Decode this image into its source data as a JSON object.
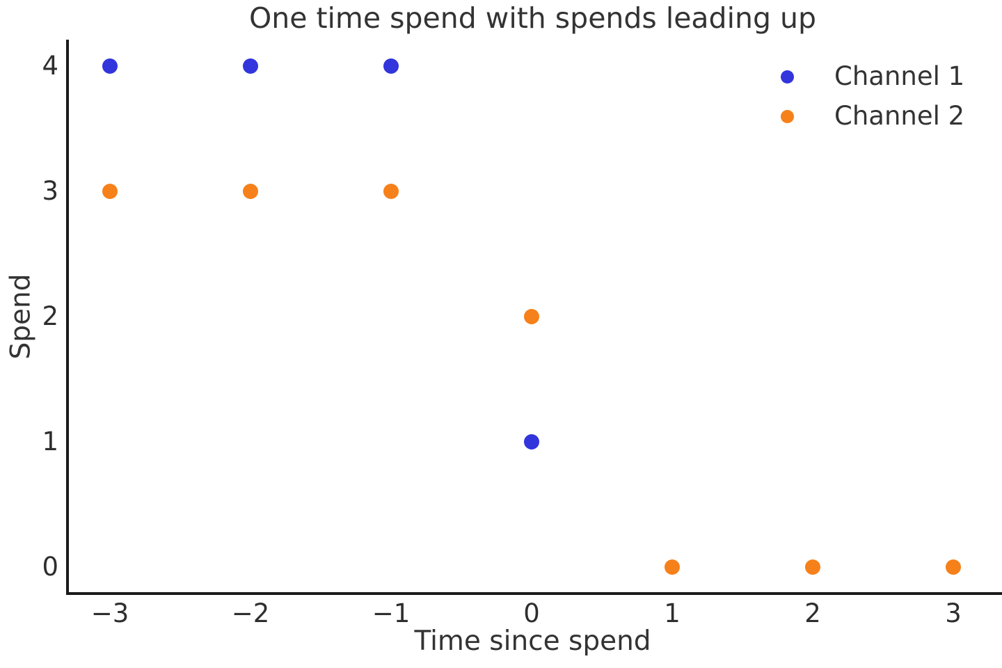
{
  "figure": {
    "title": "One time spend with spends leading up",
    "xlabel": "Time since spend",
    "ylabel": "Spend"
  },
  "legend": {
    "entries": [
      "Channel 1",
      "Channel 2"
    ],
    "position": "upper right",
    "frame": false
  },
  "colors": {
    "channel1": "#3235dc",
    "channel2": "#f6801a",
    "spine": "#1a1a1a",
    "text": "#333333"
  },
  "chart_data": {
    "type": "scatter",
    "title": "One time spend with spends leading up",
    "xlabel": "Time since spend",
    "ylabel": "Spend",
    "xlim": [
      -3.3,
      3.33
    ],
    "ylim": [
      -0.2,
      4.2
    ],
    "grid": false,
    "legend_position": "upper right",
    "x_ticks": {
      "values": [
        -3,
        -2,
        -1,
        0,
        1,
        2,
        3
      ],
      "labels": [
        "−3",
        "−2",
        "−1",
        "0",
        "1",
        "2",
        "3"
      ]
    },
    "y_ticks": {
      "values": [
        0,
        1,
        2,
        3,
        4
      ],
      "labels": [
        "0",
        "1",
        "2",
        "3",
        "4"
      ]
    },
    "series": [
      {
        "name": "Channel 1",
        "color": "#3235dc",
        "points": [
          {
            "x": -3,
            "y": 4
          },
          {
            "x": -2,
            "y": 4
          },
          {
            "x": -1,
            "y": 4
          },
          {
            "x": 0,
            "y": 1
          }
        ]
      },
      {
        "name": "Channel 2",
        "color": "#f6801a",
        "points": [
          {
            "x": -3,
            "y": 3
          },
          {
            "x": -2,
            "y": 3
          },
          {
            "x": -1,
            "y": 3
          },
          {
            "x": 0,
            "y": 2
          },
          {
            "x": 1,
            "y": 0
          },
          {
            "x": 2,
            "y": 0
          },
          {
            "x": 3,
            "y": 0
          }
        ]
      }
    ]
  }
}
